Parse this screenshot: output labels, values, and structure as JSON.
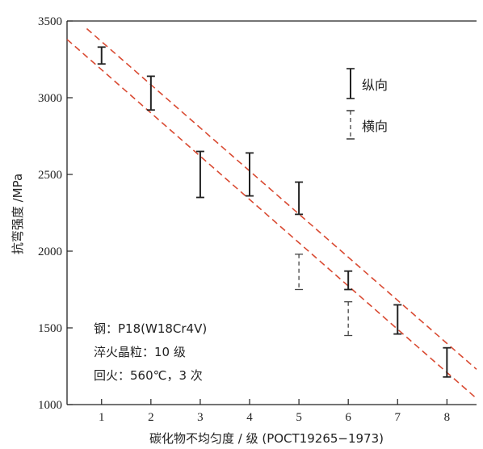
{
  "chart_data": {
    "type": "errorbar",
    "xlabel": "碳化物不均匀度 / 级 (POCT19265−1973)",
    "ylabel": "抗弯强度 /MPa",
    "xlim": [
      0.3,
      8.6
    ],
    "ylim": [
      1000,
      3500
    ],
    "x_ticks": [
      1,
      2,
      3,
      4,
      5,
      6,
      7,
      8
    ],
    "y_ticks": [
      1000,
      1500,
      2000,
      2500,
      3000,
      3500
    ],
    "grid": false,
    "legend_position": "top-right",
    "series": [
      {
        "name": "纵向",
        "style": "solid",
        "color": "#222222",
        "points": [
          {
            "x": 1,
            "low": 3220,
            "high": 3330
          },
          {
            "x": 2,
            "low": 2920,
            "high": 3140
          },
          {
            "x": 3,
            "low": 2350,
            "high": 2650
          },
          {
            "x": 4,
            "low": 2360,
            "high": 2640
          },
          {
            "x": 5,
            "low": 2240,
            "high": 2450
          },
          {
            "x": 6,
            "low": 1750,
            "high": 1870
          },
          {
            "x": 7,
            "low": 1460,
            "high": 1650
          },
          {
            "x": 8,
            "low": 1180,
            "high": 1370
          }
        ]
      },
      {
        "name": "横向",
        "style": "dashed",
        "color": "#444444",
        "points": [
          {
            "x": 5,
            "low": 1750,
            "high": 1980
          },
          {
            "x": 6,
            "low": 1450,
            "high": 1670
          }
        ]
      }
    ],
    "bands": [
      {
        "color": "#d94a32",
        "style": "dashed",
        "from": {
          "x": 0.7,
          "y": 3450
        },
        "to": {
          "x": 8.6,
          "y": 1230
        }
      },
      {
        "color": "#d94a32",
        "style": "dashed",
        "from": {
          "x": 0.3,
          "y": 3380
        },
        "to": {
          "x": 8.6,
          "y": 1040
        }
      }
    ],
    "annotations": [
      "钢：P18(W18Cr4V)",
      "淬火晶粒：10 级",
      "回火：560℃，3 次"
    ]
  },
  "colors": {
    "axis": "#222222",
    "band": "#d94a32",
    "errorbar": "#222222"
  }
}
